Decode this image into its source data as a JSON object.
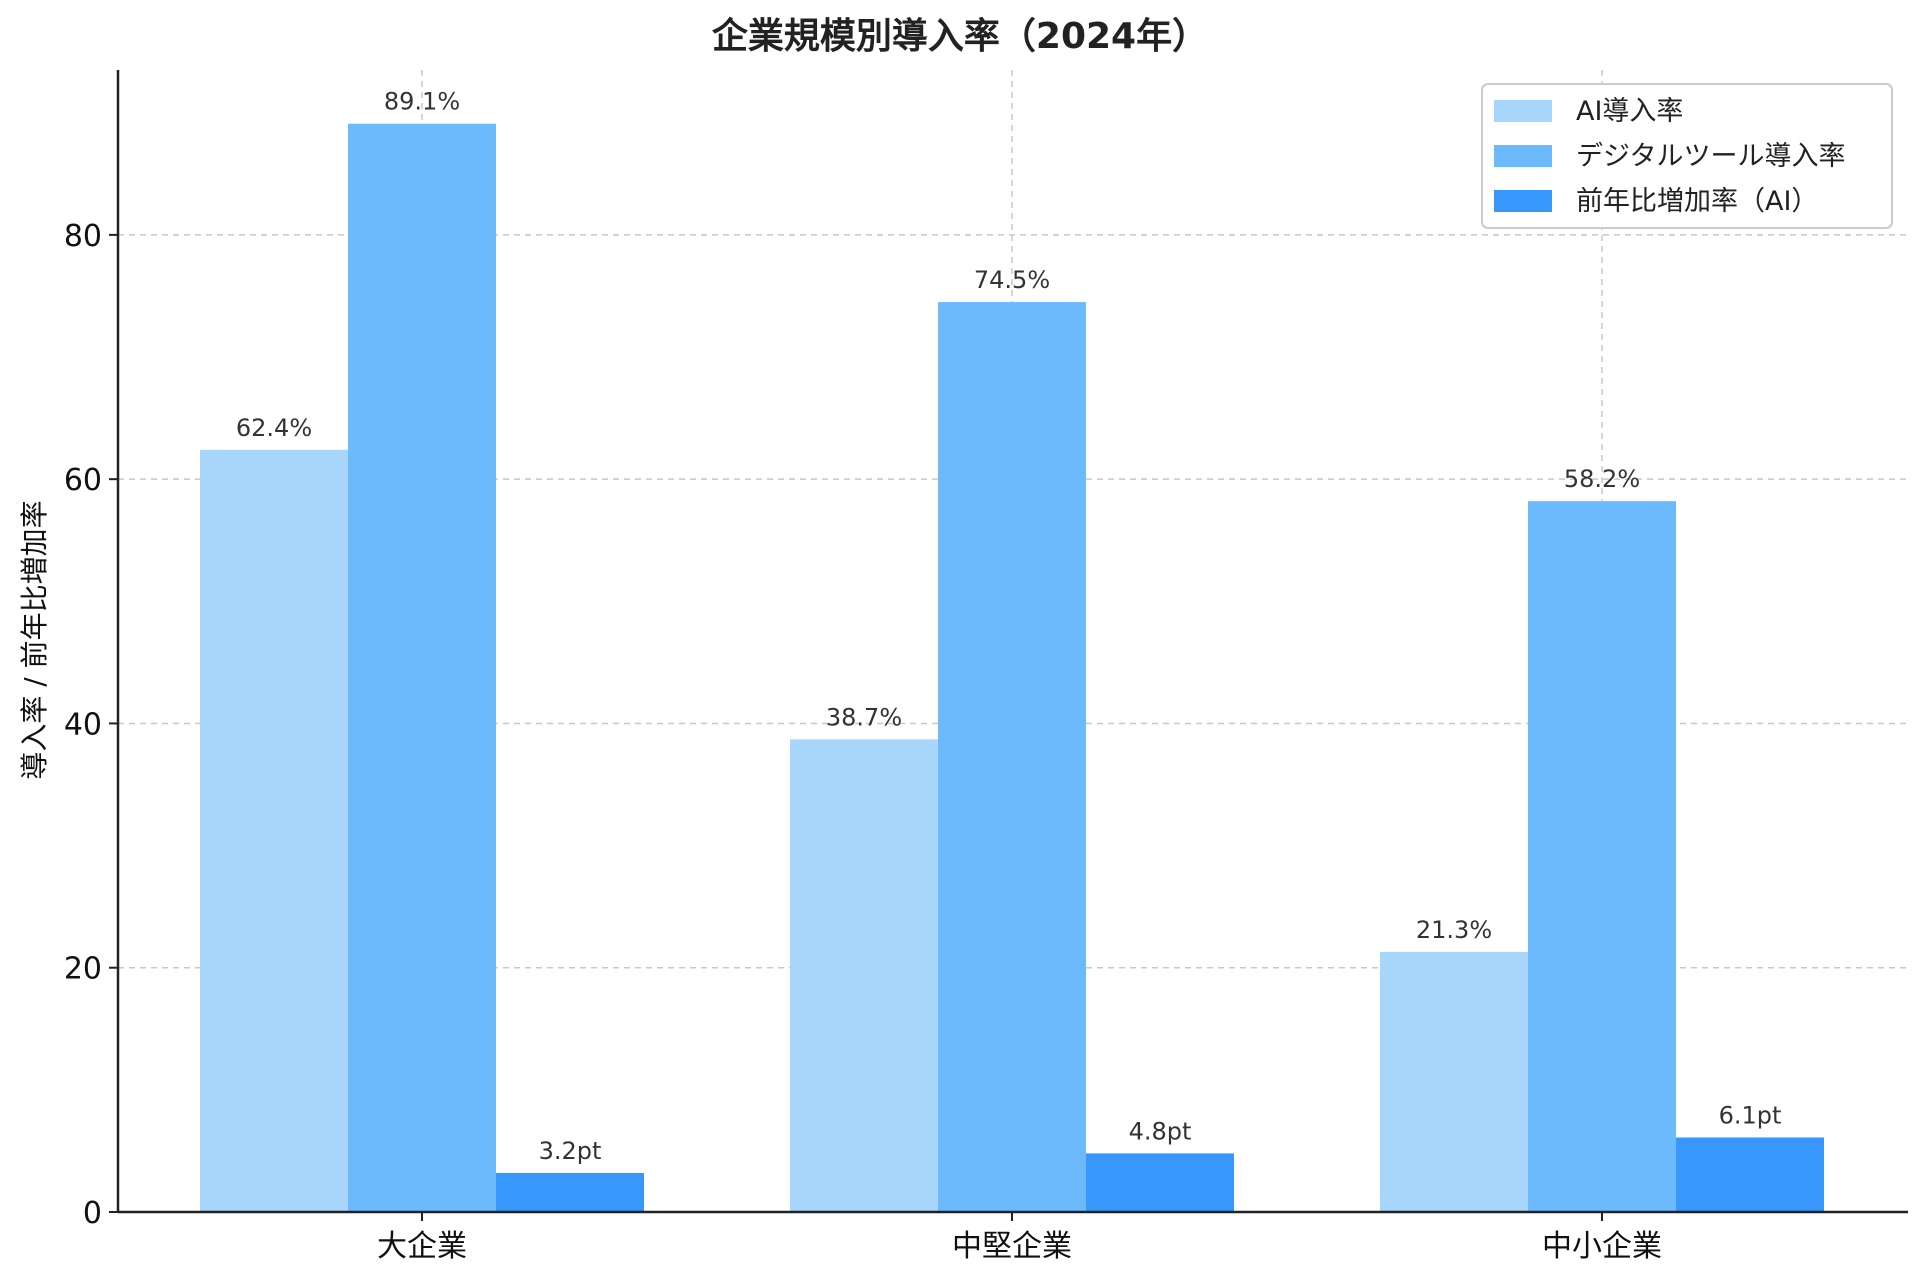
{
  "chart_data": {
    "type": "bar",
    "title": "企業規模別導入率（2024年）",
    "xlabel": "",
    "ylabel": "導入率 / 前年比増加率",
    "ylim": [
      0,
      93.5
    ],
    "yticks": [
      0,
      20,
      40,
      60,
      80
    ],
    "grid": true,
    "legend_position": "top-right",
    "categories": [
      "大企業",
      "中堅企業",
      "中小企業"
    ],
    "series": [
      {
        "name": "AI導入率",
        "color": "#a8d6fb",
        "values": [
          62.4,
          38.7,
          21.3
        ],
        "labels": [
          "62.4%",
          "38.7%",
          "21.3%"
        ]
      },
      {
        "name": "デジタルツール導入率",
        "color": "#6cb9fc",
        "values": [
          89.1,
          74.5,
          58.2
        ],
        "labels": [
          "89.1%",
          "74.5%",
          "58.2%"
        ]
      },
      {
        "name": "前年比増加率（AI）",
        "color": "#3797fb",
        "values": [
          3.2,
          4.8,
          6.1
        ],
        "labels": [
          "3.2pt",
          "4.8pt",
          "6.1pt"
        ]
      }
    ]
  }
}
